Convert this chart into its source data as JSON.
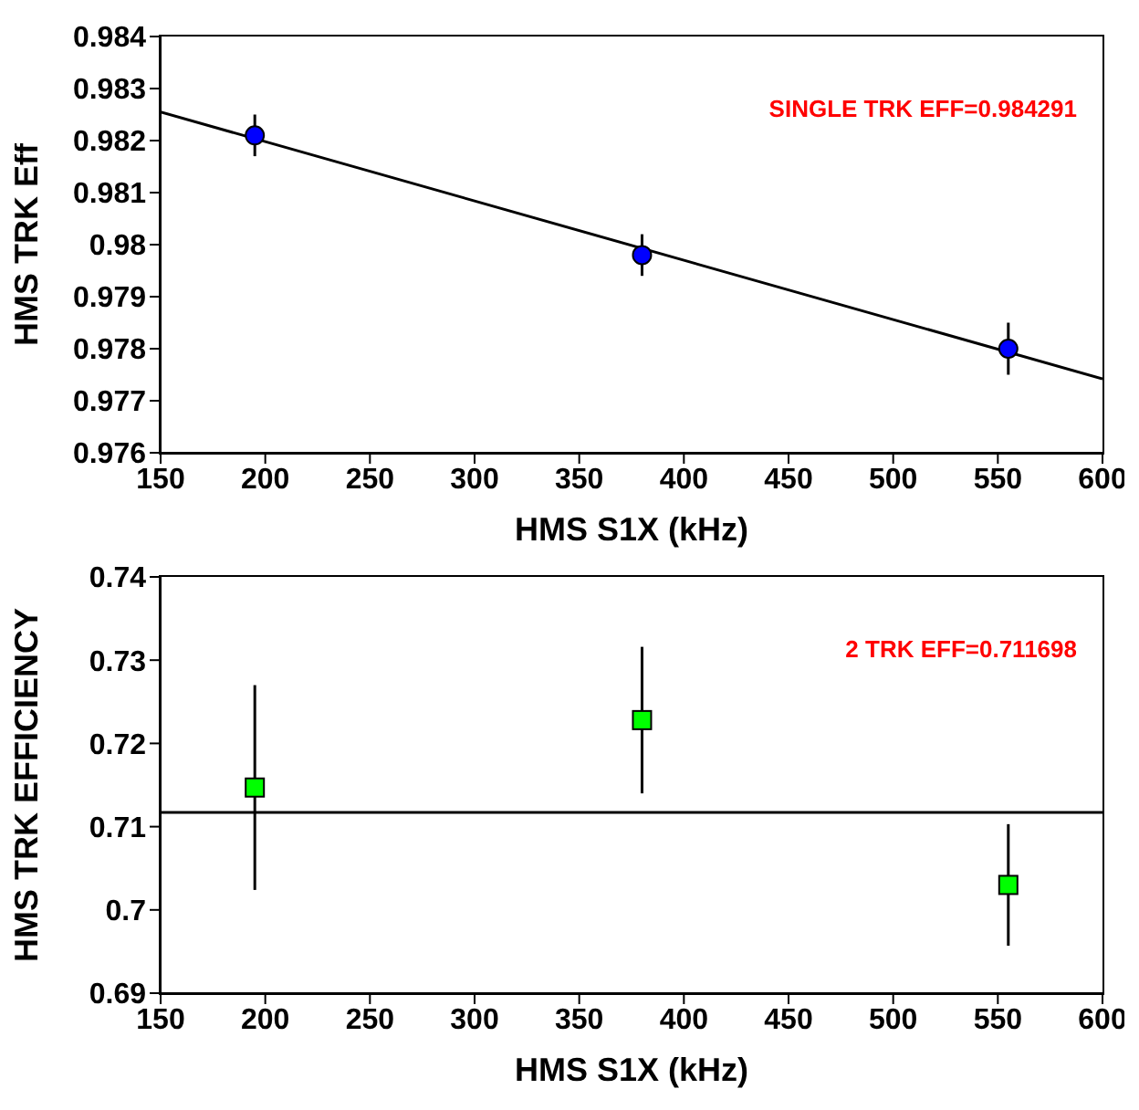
{
  "chart_data": [
    {
      "type": "scatter",
      "xlabel": "HMS S1X (kHz)",
      "ylabel": "HMS TRK Eff",
      "annotations": [
        "SINGLE TRK EFF=0.984291"
      ],
      "xlim": [
        150,
        600
      ],
      "xticks": [
        150,
        200,
        250,
        300,
        350,
        400,
        450,
        500,
        550,
        600
      ],
      "ylim": [
        0.976,
        0.984
      ],
      "yticks": [
        0.976,
        0.977,
        0.978,
        0.979,
        0.98,
        0.981,
        0.982,
        0.983,
        0.984
      ],
      "grid": false,
      "legend": false,
      "series": [
        {
          "color": "#0000ff",
          "marker": "circle",
          "x": [
            195,
            380,
            555
          ],
          "values": [
            0.9821,
            0.9798,
            0.978
          ],
          "errors": [
            0.0004,
            0.0004,
            0.0005
          ]
        },
        {
          "type": "line",
          "color": "#000000",
          "marker": "none",
          "x": [
            150,
            600
          ],
          "values": [
            0.98255,
            0.97742
          ]
        }
      ]
    },
    {
      "type": "scatter",
      "xlabel": "HMS S1X (kHz)",
      "ylabel": "HMS TRK EFFICIENCY",
      "annotations": [
        "2 TRK EFF=0.711698"
      ],
      "xlim": [
        150,
        600
      ],
      "xticks": [
        150,
        200,
        250,
        300,
        350,
        400,
        450,
        500,
        550,
        600
      ],
      "ylim": [
        0.69,
        0.74
      ],
      "yticks": [
        0.69,
        0.7,
        0.71,
        0.72,
        0.73,
        0.74
      ],
      "grid": false,
      "legend": false,
      "series": [
        {
          "color": "#00ff00",
          "marker": "square",
          "x": [
            195,
            380,
            555
          ],
          "values": [
            0.7147,
            0.7228,
            0.703
          ],
          "errors": [
            0.0123,
            0.0088,
            0.0073
          ]
        },
        {
          "type": "line",
          "color": "#000000",
          "marker": "none",
          "x": [
            150,
            600
          ],
          "values": [
            0.7117,
            0.7117
          ]
        }
      ]
    }
  ]
}
